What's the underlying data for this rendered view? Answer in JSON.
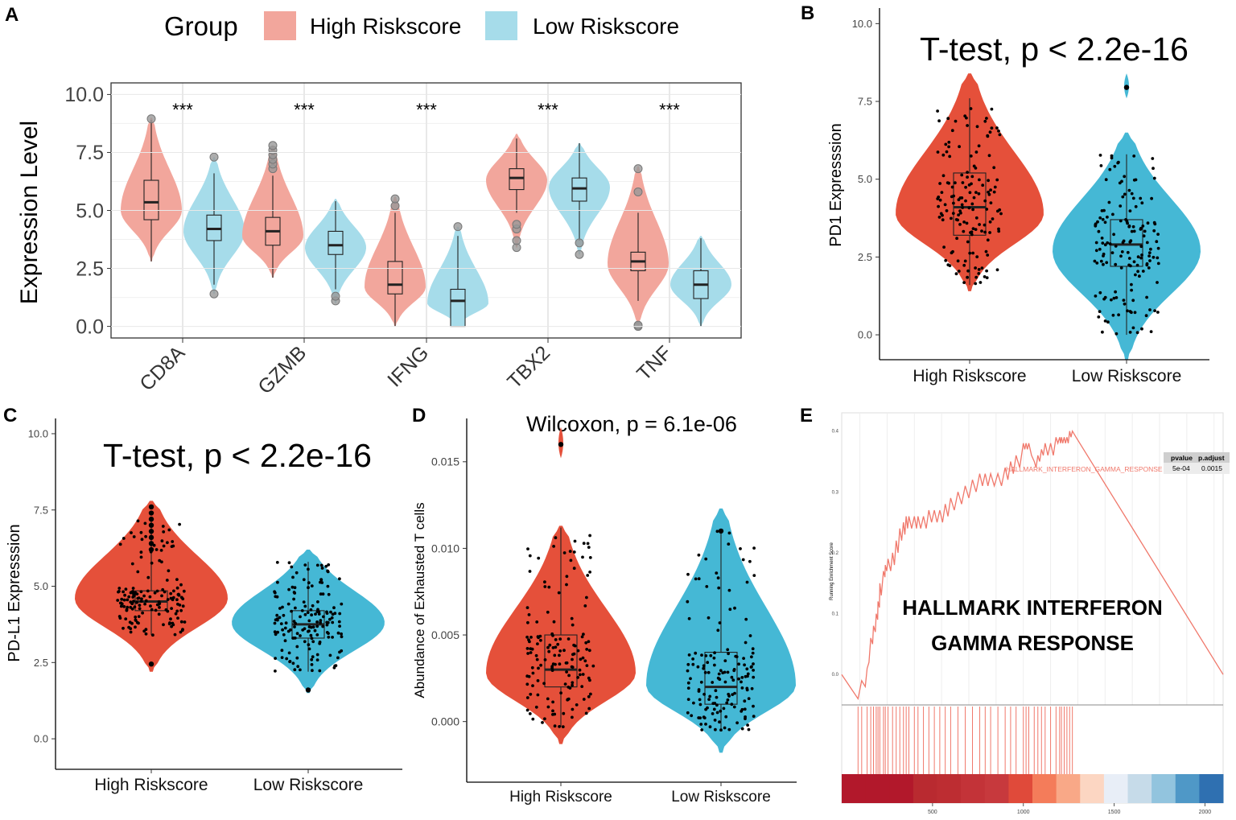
{
  "colors": {
    "high_light": "#f2a69c",
    "low_light": "#a6dcea",
    "high_dark": "#e5503a",
    "low_dark": "#45b8d5",
    "gsea_line": "#f0786b",
    "grid": "#e6e6e6"
  },
  "chart_data": [
    {
      "panel": "A",
      "type": "violin",
      "legend": {
        "title": "Group",
        "entries": [
          "High Riskscore",
          "Low Riskscore"
        ],
        "placement": "top"
      },
      "ylabel": "Expression Level",
      "ylim": [
        -0.5,
        10.5
      ],
      "yticks": [
        0,
        2.5,
        5,
        7.5,
        10
      ],
      "ytick_labels": [
        "0.0",
        "2.5",
        "5.0",
        "7.5",
        "10.0"
      ],
      "categories": [
        "CD8A",
        "GZMB",
        "IFNG",
        "TBX2",
        "TNF"
      ],
      "significance": [
        "***",
        "***",
        "***",
        "***",
        "***"
      ],
      "series": [
        {
          "name": "High Riskscore",
          "stats": [
            {
              "min": 2.8,
              "q1": 4.6,
              "median": 5.35,
              "q3": 6.3,
              "max": 8.9,
              "vmin": 2.8,
              "vmax": 9.0,
              "mode": 5.0,
              "outliers": [
                8.95
              ]
            },
            {
              "min": 2.1,
              "q1": 3.5,
              "median": 4.1,
              "q3": 4.7,
              "max": 6.5,
              "vmin": 2.1,
              "vmax": 7.8,
              "mode": 3.9,
              "outliers": [
                6.8,
                7.0,
                7.2,
                7.4,
                7.6,
                7.8
              ]
            },
            {
              "min": 0.0,
              "q1": 1.4,
              "median": 1.8,
              "q3": 2.8,
              "max": 4.9,
              "vmin": 0.0,
              "vmax": 5.6,
              "mode": 1.7,
              "outliers": [
                5.2,
                5.5
              ]
            },
            {
              "min": 4.9,
              "q1": 5.9,
              "median": 6.4,
              "q3": 6.8,
              "max": 8.1,
              "vmin": 3.4,
              "vmax": 8.3,
              "mode": 6.3,
              "outliers": [
                3.4,
                3.7,
                4.2,
                4.4
              ]
            },
            {
              "min": 1.1,
              "q1": 2.4,
              "median": 2.8,
              "q3": 3.2,
              "max": 4.9,
              "vmin": 0.0,
              "vmax": 6.9,
              "mode": 2.7,
              "outliers": [
                0.0,
                0.05,
                5.8,
                6.8
              ]
            }
          ]
        },
        {
          "name": "Low Riskscore",
          "stats": [
            {
              "min": 1.8,
              "q1": 3.7,
              "median": 4.2,
              "q3": 4.8,
              "max": 6.6,
              "vmin": 1.4,
              "vmax": 7.3,
              "mode": 4.1,
              "outliers": [
                1.4,
                7.3
              ]
            },
            {
              "min": 1.6,
              "q1": 3.1,
              "median": 3.5,
              "q3": 4.1,
              "max": 5.4,
              "vmin": 1.0,
              "vmax": 5.5,
              "mode": 3.4,
              "outliers": [
                1.1,
                1.3
              ]
            },
            {
              "min": 0.0,
              "q1": 0.0,
              "median": 1.1,
              "q3": 1.6,
              "max": 3.9,
              "vmin": 0.0,
              "vmax": 4.3,
              "mode": 1.0,
              "outliers": [
                4.3
              ]
            },
            {
              "min": 3.7,
              "q1": 5.4,
              "median": 5.95,
              "q3": 6.4,
              "max": 7.9,
              "vmin": 3.1,
              "vmax": 7.9,
              "mode": 6.0,
              "outliers": [
                3.1,
                3.6
              ]
            },
            {
              "min": 0.0,
              "q1": 1.2,
              "median": 1.8,
              "q3": 2.4,
              "max": 3.8,
              "vmin": 0.0,
              "vmax": 3.9,
              "mode": 1.8,
              "outliers": []
            }
          ]
        }
      ]
    },
    {
      "panel": "B",
      "type": "violin",
      "title": "T-test, p < 2.2e-16",
      "ylabel": "PD1 Expresssion",
      "ylim": [
        -0.8,
        10.5
      ],
      "yticks": [
        0,
        2.5,
        5,
        7.5,
        10
      ],
      "ytick_labels": [
        "0.0",
        "2.5",
        "5.0",
        "7.5",
        "10.0"
      ],
      "categories": [
        "High Riskscore",
        "Low Riskscore"
      ],
      "stats": [
        {
          "min": 1.6,
          "q1": 3.2,
          "median": 4.1,
          "q3": 5.2,
          "max": 7.6,
          "vmin": 1.4,
          "vmax": 8.4,
          "mode": 3.9
        },
        {
          "min": 0.0,
          "q1": 2.2,
          "median": 2.9,
          "q3": 3.7,
          "max": 5.8,
          "vmin": -0.8,
          "vmax": 6.5,
          "mode": 2.7,
          "upper_blob": [
            7.6,
            8.4
          ],
          "outliers": [
            7.95
          ]
        }
      ]
    },
    {
      "panel": "C",
      "type": "violin",
      "title": "T-test, p < 2.2e-16",
      "ylabel": "PD-L1 Expresssion",
      "ylim": [
        -1.0,
        10.5
      ],
      "yticks": [
        0,
        2.5,
        5,
        7.5,
        10
      ],
      "ytick_labels": [
        "0.0",
        "2.5",
        "5.0",
        "7.5",
        "10.0"
      ],
      "categories": [
        "High Riskscore",
        "Low Riskscore"
      ],
      "stats": [
        {
          "min": 3.4,
          "q1": 4.2,
          "median": 4.5,
          "q3": 4.85,
          "max": 7.2,
          "vmin": 2.2,
          "vmax": 7.8,
          "mode": 4.6,
          "outliers": [
            2.45,
            6.2,
            6.4,
            6.6,
            6.8,
            7.0,
            7.2,
            7.4,
            7.6
          ]
        },
        {
          "min": 2.2,
          "q1": 3.3,
          "median": 3.75,
          "q3": 4.2,
          "max": 5.8,
          "vmin": 1.5,
          "vmax": 6.2,
          "mode": 3.8,
          "outliers": [
            1.6
          ]
        }
      ]
    },
    {
      "panel": "D",
      "type": "violin",
      "title": "Wilcoxon, p = 6.1e-06",
      "ylabel": "Abundance of Exhausted T cells",
      "ylim": [
        -0.0035,
        0.0175
      ],
      "yticks": [
        0,
        0.005,
        0.01,
        0.015
      ],
      "ytick_labels": [
        "0.000",
        "0.005",
        "0.010",
        "0.015"
      ],
      "categories": [
        "High Riskscore",
        "Low Riskscore"
      ],
      "stats": [
        {
          "min": -0.0003,
          "q1": 0.002,
          "median": 0.003,
          "q3": 0.005,
          "max": 0.0112,
          "vmin": -0.0013,
          "vmax": 0.0113,
          "mode": 0.0028,
          "upper_blob": [
            0.0152,
            0.017
          ],
          "outliers": [
            0.016
          ]
        },
        {
          "min": -0.0005,
          "q1": 0.001,
          "median": 0.002,
          "q3": 0.004,
          "max": 0.011,
          "vmin": -0.0018,
          "vmax": 0.0123,
          "mode": 0.0021,
          "outliers": [
            0.011
          ]
        }
      ]
    },
    {
      "panel": "E",
      "type": "line",
      "subtype": "gsea",
      "title_line1": "HALLMARK INTERFERON",
      "title_line2": "GAMMA RESPONSE",
      "ylabel": "Running Enrichment Score",
      "ylim": [
        -0.05,
        0.43
      ],
      "yticks": [
        0,
        0.1,
        0.2,
        0.3,
        0.4
      ],
      "ytick_labels": [
        "0.0",
        "0.1",
        "0.2",
        "0.3",
        "0.4"
      ],
      "xlim": [
        0,
        2100
      ],
      "xticks": [
        500,
        1000,
        1500,
        2000
      ],
      "xtick_labels": [
        "500",
        "1000",
        "1500",
        "2000"
      ],
      "table": {
        "columns": [
          "pvalue",
          "p.adjust"
        ],
        "gene_set": "HALLMARK_INTERFERON_GAMMA_RESPONSE",
        "pvalue": "5e-04",
        "padjust": "0.0015"
      },
      "hits": [
        90,
        110,
        140,
        160,
        175,
        190,
        200,
        210,
        230,
        240,
        255,
        280,
        300,
        320,
        340,
        355,
        370,
        400,
        420,
        450,
        480,
        510,
        540,
        570,
        600,
        640,
        680,
        720,
        760,
        790,
        820,
        860,
        900,
        930,
        960,
        1000,
        1015,
        1030,
        1060,
        1080,
        1100,
        1120,
        1150,
        1180,
        1200,
        1210,
        1225,
        1240,
        1255,
        1270
      ],
      "x": [
        0,
        90,
        110,
        130,
        140,
        150,
        160,
        170,
        175,
        185,
        190,
        198,
        200,
        208,
        210,
        218,
        230,
        238,
        240,
        248,
        255,
        270,
        280,
        290,
        300,
        310,
        320,
        330,
        340,
        348,
        355,
        363,
        370,
        385,
        400,
        412,
        420,
        435,
        450,
        465,
        480,
        495,
        510,
        525,
        540,
        555,
        570,
        585,
        600,
        620,
        640,
        660,
        680,
        700,
        720,
        740,
        760,
        775,
        790,
        805,
        820,
        840,
        860,
        880,
        900,
        915,
        930,
        945,
        960,
        980,
        1000,
        1008,
        1015,
        1022,
        1030,
        1045,
        1060,
        1070,
        1080,
        1090,
        1100,
        1110,
        1120,
        1135,
        1150,
        1165,
        1180,
        1190,
        1200,
        1205,
        1210,
        1217,
        1225,
        1232,
        1240,
        1247,
        1255,
        1262,
        1270,
        1290,
        2100
      ],
      "y": [
        0.0,
        -0.04,
        -0.01,
        -0.02,
        0.01,
        0.02,
        0.06,
        0.05,
        0.08,
        0.07,
        0.1,
        0.09,
        0.12,
        0.11,
        0.15,
        0.13,
        0.17,
        0.16,
        0.18,
        0.17,
        0.19,
        0.17,
        0.2,
        0.18,
        0.22,
        0.2,
        0.24,
        0.22,
        0.25,
        0.23,
        0.26,
        0.24,
        0.26,
        0.24,
        0.26,
        0.24,
        0.26,
        0.24,
        0.26,
        0.24,
        0.27,
        0.25,
        0.27,
        0.25,
        0.27,
        0.25,
        0.28,
        0.26,
        0.29,
        0.27,
        0.3,
        0.28,
        0.31,
        0.29,
        0.32,
        0.3,
        0.33,
        0.31,
        0.33,
        0.31,
        0.33,
        0.31,
        0.33,
        0.31,
        0.34,
        0.32,
        0.35,
        0.33,
        0.36,
        0.34,
        0.38,
        0.37,
        0.38,
        0.37,
        0.38,
        0.36,
        0.35,
        0.34,
        0.36,
        0.35,
        0.37,
        0.36,
        0.38,
        0.36,
        0.38,
        0.36,
        0.39,
        0.38,
        0.39,
        0.38,
        0.39,
        0.38,
        0.39,
        0.38,
        0.39,
        0.38,
        0.4,
        0.39,
        0.4,
        0.39,
        0.0
      ]
    }
  ]
}
